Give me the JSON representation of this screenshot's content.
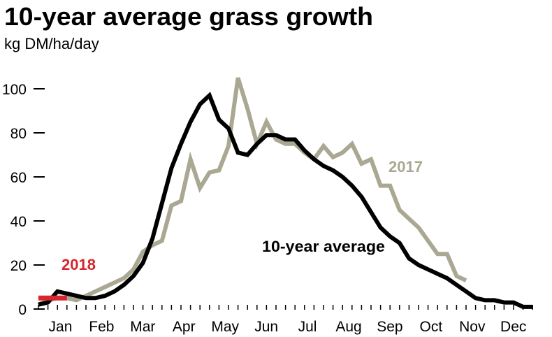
{
  "chart_data": {
    "type": "line",
    "title": "10-year average grass growth",
    "subtitle": "kg DM/ha/day",
    "xlabel": "",
    "ylabel": "",
    "x_unit": "week of year",
    "month_labels": [
      "Jan",
      "Feb",
      "Mar",
      "Apr",
      "May",
      "Jun",
      "Jul",
      "Aug",
      "Sep",
      "Oct",
      "Nov",
      "Dec"
    ],
    "ylim": [
      0,
      110
    ],
    "yticks": [
      0,
      20,
      40,
      60,
      80,
      100
    ],
    "grid": false,
    "colors": {
      "avg": "#000000",
      "y2017": "#aaa892",
      "y2018": "#d7262f"
    },
    "series": [
      {
        "name": "10-year average",
        "color": "#000000",
        "values": [
          2,
          3,
          8,
          7,
          6,
          5,
          5,
          6,
          8,
          11,
          15,
          21,
          32,
          48,
          64,
          75,
          85,
          93,
          97,
          86,
          82,
          71,
          70,
          75,
          79,
          79,
          77,
          77,
          72,
          68,
          65,
          63,
          60,
          56,
          51,
          44,
          37,
          33,
          30,
          23,
          20,
          18,
          16,
          14,
          11,
          8,
          5,
          4,
          4,
          3,
          3,
          1,
          1
        ]
      },
      {
        "name": "2017",
        "color": "#aaa892",
        "values": [
          2,
          4,
          5,
          5,
          4,
          6,
          8,
          10,
          12,
          14,
          18,
          26,
          29,
          31,
          47,
          49,
          68,
          55,
          62,
          63,
          74,
          105,
          91,
          75,
          85,
          77,
          75,
          75,
          71,
          68,
          74,
          69,
          71,
          75,
          66,
          68,
          56,
          56,
          45,
          41,
          37,
          31,
          25,
          25,
          15,
          13
        ]
      },
      {
        "name": "2018",
        "color": "#d7262f",
        "values": [
          5,
          5,
          5,
          5
        ]
      }
    ]
  }
}
